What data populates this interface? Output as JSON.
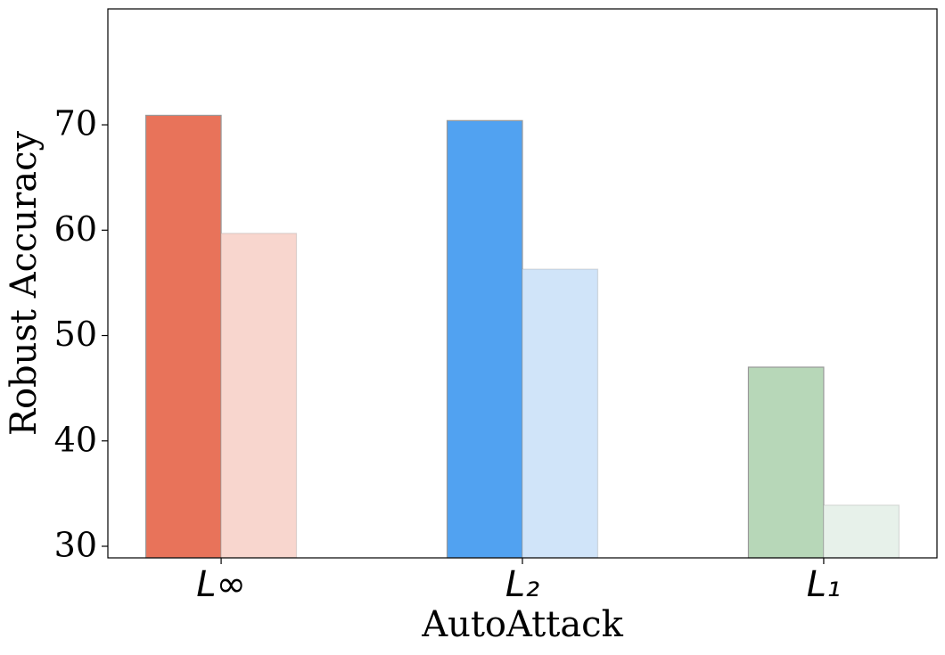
{
  "chart_data": {
    "type": "bar",
    "x_label": "AutoAttack",
    "y_label": "Robust Accuracy",
    "categories": [
      "L∞",
      "L₂",
      "L₁"
    ],
    "series": [
      {
        "values": [
          70.9,
          70.4,
          47.0
        ],
        "colors": [
          "#e8735a",
          "#51a2f1",
          "#b7d7b8"
        ]
      },
      {
        "values": [
          59.7,
          56.3,
          33.9
        ],
        "colors": [
          "#f8d6ce",
          "#d0e4f9",
          "#e7f1ea"
        ]
      }
    ],
    "ylim": [
      28.9,
      81
    ],
    "yticks": [
      30,
      40,
      50,
      60,
      70
    ],
    "grid": false
  }
}
